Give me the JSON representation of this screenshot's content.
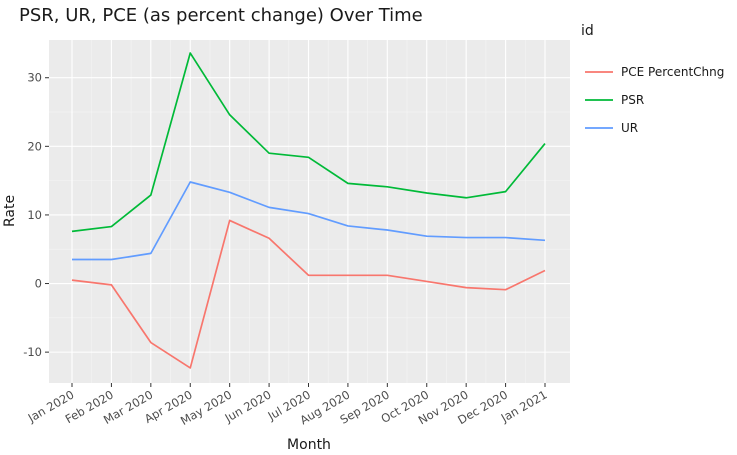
{
  "chart_data": {
    "type": "line",
    "title": "PSR, UR, PCE (as percent change) Over Time",
    "xlabel": "Month",
    "ylabel": "Rate",
    "categories": [
      "Jan 2020",
      "Feb 2020",
      "Mar 2020",
      "Apr 2020",
      "May 2020",
      "Jun 2020",
      "Jul 2020",
      "Aug 2020",
      "Sep 2020",
      "Oct 2020",
      "Nov 2020",
      "Dec 2020",
      "Jan 2021"
    ],
    "ylim": [
      -14.5,
      35.5
    ],
    "yticks": [
      -10,
      0,
      10,
      20,
      30
    ],
    "yticks_minor": [
      -5,
      5,
      15,
      25
    ],
    "grid": true,
    "background": "#ebebeb",
    "legend": {
      "title": "id",
      "position": "right"
    },
    "series": [
      {
        "name": "PCE PercentChng",
        "color": "#f8766d",
        "values": [
          0.5,
          -0.2,
          -8.6,
          -12.3,
          9.2,
          6.6,
          1.2,
          1.2,
          1.2,
          0.3,
          -0.6,
          -0.9,
          1.9
        ]
      },
      {
        "name": "PSR",
        "color": "#00ba38",
        "values": [
          7.6,
          8.3,
          12.9,
          33.6,
          24.6,
          19.0,
          18.4,
          14.6,
          14.1,
          13.2,
          12.5,
          13.4,
          20.4
        ]
      },
      {
        "name": "UR",
        "color": "#619cff",
        "values": [
          3.5,
          3.5,
          4.4,
          14.8,
          13.3,
          11.1,
          10.2,
          8.4,
          7.8,
          6.9,
          6.7,
          6.7,
          6.3
        ]
      }
    ]
  }
}
